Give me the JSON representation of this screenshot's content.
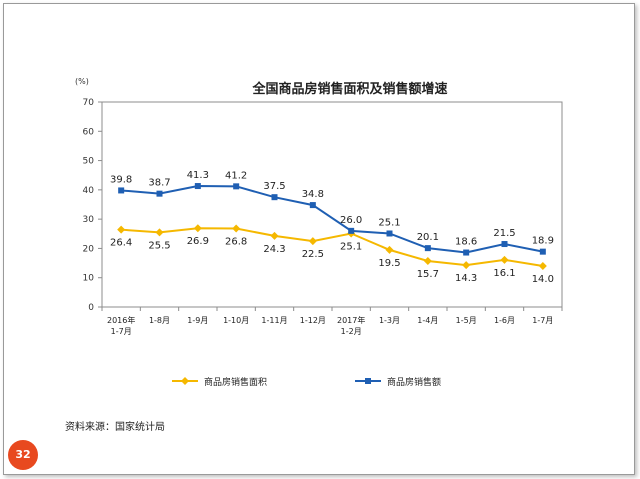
{
  "chart_data": {
    "type": "line",
    "title": "全国商品房销售面积及销售额增速",
    "ylabel": "(%)",
    "xlabel": "",
    "ylim": [
      0,
      70
    ],
    "yticks": [
      0,
      10,
      20,
      30,
      40,
      50,
      60,
      70
    ],
    "categories": [
      [
        "2016年",
        "1-7月"
      ],
      [
        "1-8月"
      ],
      [
        "1-9月"
      ],
      [
        "1-10月"
      ],
      [
        "1-11月"
      ],
      [
        "1-12月"
      ],
      [
        "2017年",
        "1-2月"
      ],
      [
        "1-3月"
      ],
      [
        "1-4月"
      ],
      [
        "1-5月"
      ],
      [
        "1-6月"
      ],
      [
        "1-7月"
      ]
    ],
    "series": [
      {
        "name": "商品房销售面积",
        "color": "#f5b800",
        "marker": "diamond",
        "values": [
          26.4,
          25.5,
          26.9,
          26.8,
          24.3,
          22.5,
          25.1,
          19.5,
          15.7,
          14.3,
          16.1,
          14.0
        ],
        "labels": [
          "26.4",
          "25.5",
          "26.9",
          "26.8",
          "24.3",
          "22.5",
          "25.1",
          "19.5",
          "15.7",
          "14.3",
          "16.1",
          "14.0"
        ]
      },
      {
        "name": "商品房销售额",
        "color": "#1f5fb3",
        "marker": "square",
        "values": [
          39.8,
          38.7,
          41.3,
          41.2,
          37.5,
          34.8,
          26.0,
          25.1,
          20.1,
          18.6,
          21.5,
          18.9
        ],
        "labels": [
          "39.8",
          "38.7",
          "41.3",
          "41.2",
          "37.5",
          "34.8",
          "26.0",
          "25.1",
          "20.1",
          "18.6",
          "21.5",
          "18.9"
        ]
      }
    ],
    "legend_position": "bottom"
  },
  "source_note": "资料来源：国家统计局",
  "page_number": "32",
  "colors": {
    "badge": "#e8491f"
  }
}
